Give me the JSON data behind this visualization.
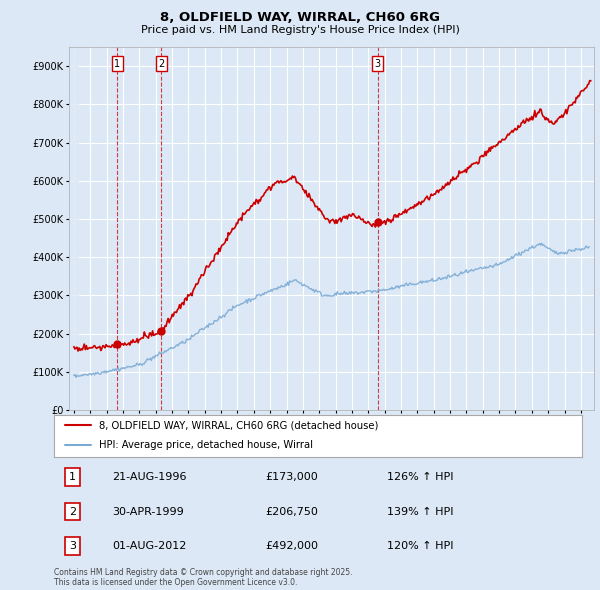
{
  "title_line1": "8, OLDFIELD WAY, WIRRAL, CH60 6RG",
  "title_line2": "Price paid vs. HM Land Registry's House Price Index (HPI)",
  "ylim": [
    0,
    950000
  ],
  "yticks": [
    0,
    100000,
    200000,
    300000,
    400000,
    500000,
    600000,
    700000,
    800000,
    900000
  ],
  "ytick_labels": [
    "£0",
    "£100K",
    "£200K",
    "£300K",
    "£400K",
    "£500K",
    "£600K",
    "£700K",
    "£800K",
    "£900K"
  ],
  "hpi_color": "#7aaad4",
  "price_color": "#cc0000",
  "background_color": "#dce8f5",
  "plot_bg_color": "#dce8f5",
  "sale_dates": [
    1996.64,
    1999.33,
    2012.58
  ],
  "sale_prices": [
    173000,
    206750,
    492000
  ],
  "sale_labels": [
    "1",
    "2",
    "3"
  ],
  "legend_line1": "8, OLDFIELD WAY, WIRRAL, CH60 6RG (detached house)",
  "legend_line2": "HPI: Average price, detached house, Wirral",
  "table_rows": [
    [
      "1",
      "21-AUG-1996",
      "£173,000",
      "126% ↑ HPI"
    ],
    [
      "2",
      "30-APR-1999",
      "£206,750",
      "139% ↑ HPI"
    ],
    [
      "3",
      "01-AUG-2012",
      "£492,000",
      "120% ↑ HPI"
    ]
  ],
  "footer": "Contains HM Land Registry data © Crown copyright and database right 2025.\nThis data is licensed under the Open Government Licence v3.0.",
  "xmin": 1993.7,
  "xmax": 2025.8
}
